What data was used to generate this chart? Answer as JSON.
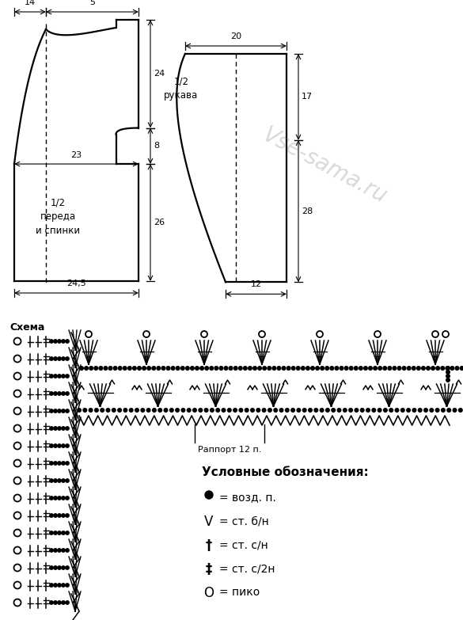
{
  "bg_color": "#ffffff",
  "watermark": "Vse-sama.ru",
  "front_label": "1/2\nпереда\nи спинки",
  "sleeve_label": "1/2\nрукава",
  "schema_label": "Схема",
  "rapport_label": "Раппорт 12 п.",
  "legend_title": "Условные обозначения:",
  "legend_symbols": [
    "●",
    "V",
    "†",
    "‡",
    "O"
  ],
  "legend_texts": [
    "= возд. п.",
    "= ст. б/н",
    "= ст. с/н",
    "= ст. с/2н",
    "= пико"
  ],
  "dim_14": "14",
  "dim_5": "5",
  "dim_24": "24",
  "dim_8": "8",
  "dim_23": "23",
  "dim_26": "26",
  "dim_245": "24,5",
  "dim_20": "20",
  "dim_17": "17",
  "dim_28": "28",
  "dim_12": "12"
}
